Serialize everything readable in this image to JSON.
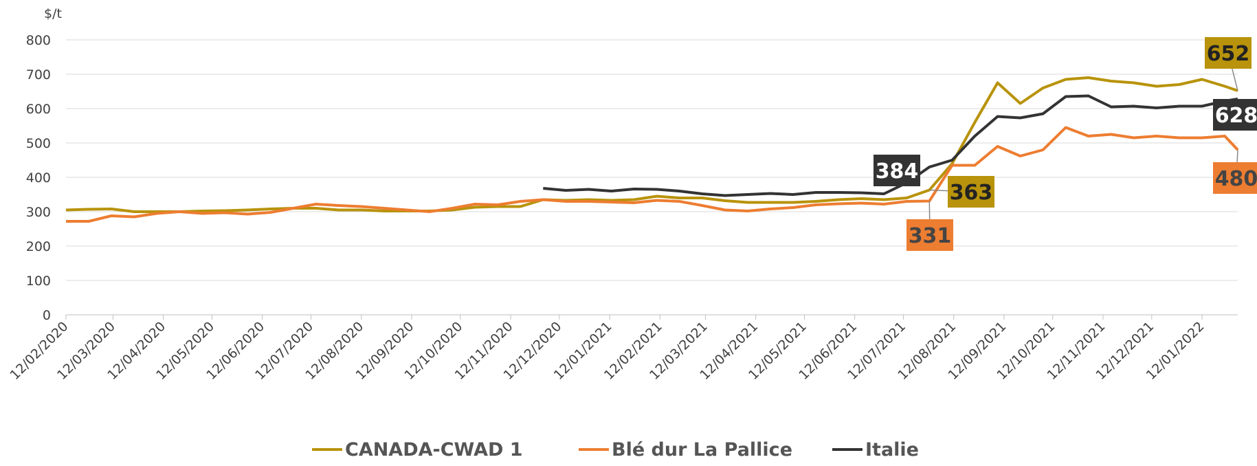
{
  "chart_data": {
    "type": "line",
    "y_label": "$/t",
    "x": [
      "12/02/2020",
      "26/02/2020",
      "11/03/2020",
      "25/03/2020",
      "08/04/2020",
      "22/04/2020",
      "06/05/2020",
      "20/05/2020",
      "03/06/2020",
      "17/06/2020",
      "01/07/2020",
      "15/07/2020",
      "29/07/2020",
      "12/08/2020",
      "26/08/2020",
      "09/09/2020",
      "23/09/2020",
      "07/10/2020",
      "21/10/2020",
      "04/11/2020",
      "18/11/2020",
      "02/12/2020",
      "16/12/2020",
      "30/12/2020",
      "13/01/2021",
      "27/01/2021",
      "10/02/2021",
      "24/02/2021",
      "10/03/2021",
      "24/03/2021",
      "07/04/2021",
      "21/04/2021",
      "05/05/2021",
      "19/05/2021",
      "02/06/2021",
      "16/06/2021",
      "30/06/2021",
      "14/07/2021",
      "28/07/2021",
      "11/08/2021",
      "25/08/2021",
      "08/09/2021",
      "22/09/2021",
      "06/10/2021",
      "20/10/2021",
      "03/11/2021",
      "17/11/2021",
      "01/12/2021",
      "15/12/2021",
      "29/12/2021",
      "12/01/2022",
      "26/01/2022",
      "03/02/2022"
    ],
    "series": [
      {
        "name": "CANADA-CWAD 1",
        "color": "#b8930b",
        "values": [
          305,
          307,
          308,
          300,
          300,
          300,
          302,
          303,
          305,
          308,
          310,
          310,
          305,
          305,
          302,
          302,
          302,
          305,
          313,
          315,
          315,
          335,
          333,
          335,
          333,
          335,
          345,
          340,
          340,
          332,
          327,
          327,
          327,
          330,
          335,
          338,
          335,
          340,
          363,
          440,
          560,
          675,
          615,
          660,
          685,
          690,
          680,
          675,
          665,
          670,
          685,
          665,
          652
        ]
      },
      {
        "name": "Blé dur La Pallice",
        "color": "#ed7d31",
        "values": [
          272,
          272,
          288,
          285,
          295,
          300,
          295,
          297,
          293,
          298,
          310,
          322,
          318,
          315,
          310,
          305,
          300,
          310,
          322,
          320,
          330,
          335,
          330,
          330,
          328,
          326,
          333,
          330,
          318,
          305,
          302,
          308,
          312,
          320,
          323,
          325,
          322,
          330,
          331,
          435,
          435,
          490,
          462,
          480,
          545,
          520,
          525,
          515,
          520,
          515,
          515,
          520,
          480
        ]
      },
      {
        "name": "Italie",
        "color": "#333333",
        "values": [
          null,
          null,
          null,
          null,
          null,
          null,
          null,
          null,
          null,
          null,
          null,
          null,
          null,
          null,
          null,
          null,
          null,
          null,
          null,
          null,
          null,
          368,
          362,
          365,
          360,
          366,
          365,
          360,
          352,
          347,
          350,
          353,
          350,
          356,
          356,
          355,
          352,
          384,
          430,
          450,
          520,
          577,
          573,
          585,
          635,
          637,
          605,
          607,
          602,
          607,
          607,
          622,
          628
        ]
      }
    ],
    "xlim": [
      "12/02/2020",
      "03/02/2022"
    ],
    "xticks": [
      "12/02/2020",
      "12/03/2020",
      "12/04/2020",
      "12/05/2020",
      "12/06/2020",
      "12/07/2020",
      "12/08/2020",
      "12/09/2020",
      "12/10/2020",
      "12/11/2020",
      "12/12/2020",
      "12/01/2021",
      "12/02/2021",
      "12/03/2021",
      "12/04/2021",
      "12/05/2021",
      "12/06/2021",
      "12/07/2021",
      "12/08/2021",
      "12/09/2021",
      "12/10/2021",
      "12/11/2021",
      "12/12/2021",
      "12/01/2022"
    ],
    "ylim": [
      0,
      800
    ],
    "yticks": [
      0,
      100,
      200,
      300,
      400,
      500,
      600,
      700,
      800
    ],
    "grid": true,
    "legend": "bottom"
  }
}
